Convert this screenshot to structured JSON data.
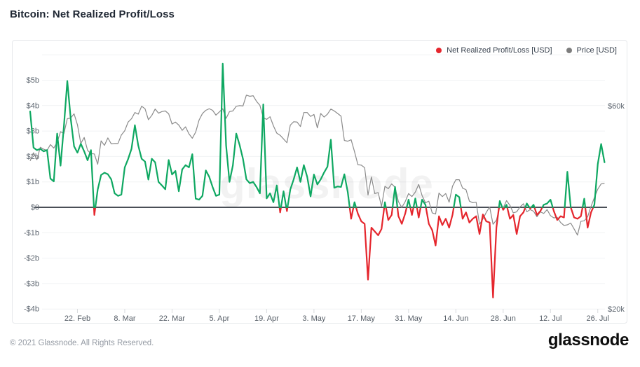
{
  "page": {
    "title": "Bitcoin: Net Realized Profit/Loss",
    "footer_copyright": "© 2021 Glassnode. All Rights Reserved.",
    "footer_brand": "glassnode"
  },
  "legend": {
    "items": [
      {
        "label": "Net Realized Profit/Loss [USD]",
        "color": "#e5262d"
      },
      {
        "label": "Price [USD]",
        "color": "#7d7d7d"
      }
    ]
  },
  "chart_data": {
    "type": "line",
    "title": "Bitcoin: Net Realized Profit/Loss",
    "watermark": "glassnode",
    "start_date": "2021-02-08",
    "x_ticks": [
      {
        "label": "22. Feb",
        "i": 14
      },
      {
        "label": "8. Mar",
        "i": 28
      },
      {
        "label": "22. Mar",
        "i": 42
      },
      {
        "label": "5. Apr",
        "i": 56
      },
      {
        "label": "19. Apr",
        "i": 70
      },
      {
        "label": "3. May",
        "i": 84
      },
      {
        "label": "17. May",
        "i": 98
      },
      {
        "label": "31. May",
        "i": 112
      },
      {
        "label": "14. Jun",
        "i": 126
      },
      {
        "label": "28. Jun",
        "i": 140
      },
      {
        "label": "12. Jul",
        "i": 154
      },
      {
        "label": "26. Jul",
        "i": 168
      }
    ],
    "y_left": {
      "unit": "USD billions",
      "ticks": [
        {
          "label": "$5b",
          "v": 5
        },
        {
          "label": "$4b",
          "v": 4
        },
        {
          "label": "$3b",
          "v": 3
        },
        {
          "label": "$2b",
          "v": 2
        },
        {
          "label": "$1b",
          "v": 1
        },
        {
          "label": "$0",
          "v": 0
        },
        {
          "label": "-$1b",
          "v": -1
        },
        {
          "label": "-$2b",
          "v": -2
        },
        {
          "label": "-$3b",
          "v": -3
        },
        {
          "label": "-$4b",
          "v": -4
        }
      ],
      "grid_values": [
        6,
        5,
        4,
        3,
        2,
        1,
        -1,
        -2,
        -3,
        -4
      ]
    },
    "y_right": {
      "unit": "USD thousands",
      "scale": "log",
      "ticks": [
        {
          "label": "$60k",
          "v": 60
        },
        {
          "label": "$20k",
          "v": 20
        }
      ]
    },
    "colors": {
      "profit_green": "#0fa862",
      "loss_red": "#e5262d",
      "price_gray": "#8b8b8b",
      "zero_line": "#4a4f57",
      "grid": "#f1f2f4",
      "axis_text": "#5f6771"
    },
    "series": [
      {
        "name": "Net Realized Profit/Loss [USD]",
        "unit": "$ billions",
        "values": [
          3.77,
          2.35,
          2.25,
          2.3,
          2.2,
          2.25,
          1.13,
          1.02,
          2.9,
          1.64,
          3.2,
          4.97,
          3.5,
          2.4,
          2.15,
          2.5,
          2.2,
          1.85,
          2.25,
          -0.3,
          0.7,
          1.27,
          1.36,
          1.3,
          1.1,
          0.55,
          0.45,
          0.5,
          1.57,
          1.9,
          2.3,
          3.23,
          2.43,
          1.91,
          1.8,
          1.09,
          1.91,
          1.77,
          1.0,
          0.86,
          0.71,
          1.86,
          1.29,
          1.43,
          0.63,
          1.49,
          1.66,
          1.57,
          2.09,
          0.34,
          0.3,
          0.45,
          1.45,
          1.2,
          0.8,
          0.45,
          0.5,
          5.65,
          2.43,
          1.0,
          1.65,
          2.9,
          2.45,
          1.9,
          1.1,
          0.95,
          1.0,
          0.8,
          0.55,
          4.05,
          0.35,
          0.55,
          0.2,
          0.86,
          -0.2,
          0.63,
          -0.15,
          0.7,
          1.1,
          1.57,
          1.0,
          1.66,
          1.2,
          0.43,
          1.29,
          0.9,
          1.1,
          1.37,
          1.6,
          2.66,
          0.77,
          0.82,
          0.8,
          1.3,
          0.6,
          -0.45,
          0.2,
          -0.25,
          -0.55,
          -0.65,
          -2.85,
          -0.8,
          -0.95,
          -1.1,
          -0.85,
          0.2,
          -0.5,
          -0.3,
          0.8,
          -0.35,
          -0.65,
          -0.25,
          0.3,
          -0.3,
          0.35,
          -0.4,
          0.3,
          0.1,
          -0.65,
          -0.9,
          -1.5,
          -0.35,
          -0.7,
          -0.45,
          -0.8,
          -0.3,
          0.5,
          0.4,
          -0.45,
          -0.2,
          -0.6,
          -0.45,
          -0.35,
          -1.05,
          -0.28,
          -0.55,
          -0.6,
          -3.55,
          -0.8,
          0.25,
          -0.1,
          0.1,
          -0.45,
          -0.3,
          -1.05,
          -0.35,
          -0.2,
          0.15,
          -0.05,
          0.1,
          -0.3,
          -0.15,
          0.1,
          0.15,
          0.3,
          -0.15,
          -0.5,
          -0.35,
          -0.4,
          1.4,
          0.0,
          -0.4,
          -0.45,
          -0.35,
          0.34,
          -0.8,
          -0.2,
          0.1,
          1.7,
          2.49,
          1.77
        ]
      },
      {
        "name": "Price [USD]",
        "unit": "$ thousands",
        "values": [
          44.5,
          46.5,
          44.8,
          47.9,
          47.4,
          47.1,
          48.6,
          47.7,
          49.2,
          52.1,
          51.6,
          55.9,
          56.1,
          57.4,
          54.1,
          48.9,
          50.5,
          47.1,
          46.3,
          46.2,
          43.7,
          49.6,
          48.4,
          50.4,
          48.8,
          48.9,
          48.9,
          51.2,
          52.4,
          54.9,
          55.9,
          57.8,
          57.3,
          59.8,
          59.0,
          55.6,
          56.9,
          58.9,
          57.6,
          58.1,
          58.3,
          57.4,
          54.3,
          54.9,
          54.0,
          52.5,
          53.5,
          51.5,
          50.3,
          52.0,
          55.5,
          57.5,
          58.5,
          59.0,
          58.5,
          57.0,
          58.0,
          59.0,
          56.0,
          58.1,
          58.3,
          59.8,
          60.0,
          59.9,
          63.5,
          63.1,
          63.3,
          61.4,
          60.1,
          56.2,
          55.7,
          56.5,
          53.8,
          51.7,
          51.1,
          50.1,
          49.1,
          54.0,
          55.0,
          54.9,
          53.6,
          57.8,
          57.8,
          56.6,
          57.2,
          53.2,
          57.5,
          56.4,
          57.3,
          58.9,
          58.3,
          57.5,
          56.7,
          49.7,
          49.5,
          49.9,
          46.8,
          43.6,
          43.5,
          42.9,
          37.0,
          40.8,
          37.3,
          37.5,
          34.8,
          38.8,
          38.3,
          39.3,
          38.6,
          35.7,
          34.6,
          35.7,
          37.3,
          36.7,
          37.6,
          39.2,
          36.9,
          35.5,
          35.8,
          33.6,
          33.4,
          37.4,
          36.7,
          37.3,
          35.6,
          38.8,
          40.2,
          40.2,
          38.4,
          38.1,
          35.8,
          35.5,
          35.6,
          31.6,
          32.5,
          33.7,
          34.7,
          31.6,
          32.3,
          34.7,
          34.5,
          35.9,
          35.0,
          33.6,
          33.8,
          34.7,
          35.3,
          33.8,
          34.2,
          33.9,
          32.9,
          33.8,
          33.5,
          34.2,
          33.1,
          32.7,
          32.8,
          31.9,
          31.4,
          31.5,
          31.8,
          30.8,
          29.8,
          32.1,
          32.2,
          32.9,
          34.8,
          36.5,
          38.2,
          39.3,
          39.4
        ]
      }
    ]
  }
}
